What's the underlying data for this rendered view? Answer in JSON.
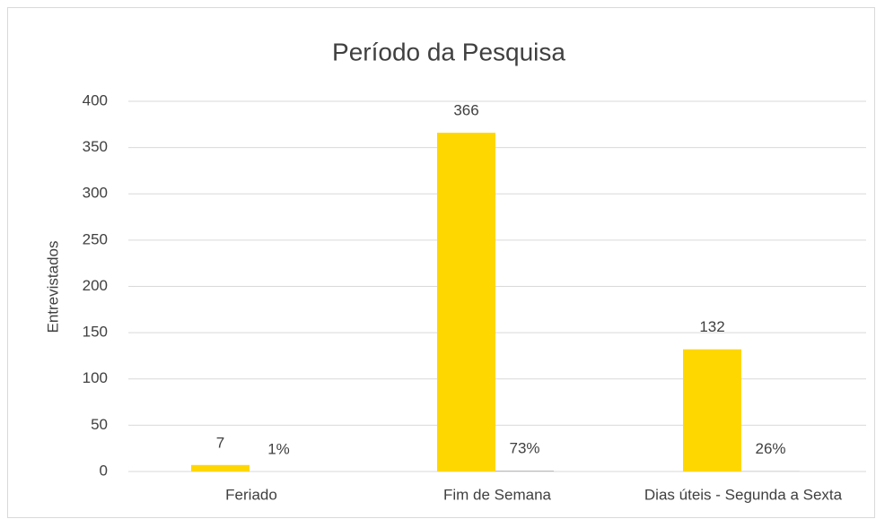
{
  "chart_data": {
    "type": "bar",
    "title": "Período da Pesquisa",
    "y_label": "Entrevistados",
    "categories": [
      "Feriado",
      "Fim de Semana",
      "Dias úteis - Segunda a Sexta"
    ],
    "series": [
      {
        "color": "#ffd700",
        "values": [
          7,
          366,
          132
        ]
      },
      {
        "color": "#a5a5a5",
        "values": [
          0.01,
          0.73,
          0.26
        ],
        "value_labels": [
          "1%",
          "73%",
          "26%"
        ]
      }
    ],
    "ylim": [
      0,
      400
    ],
    "yticks": [
      0,
      50,
      100,
      150,
      200,
      250,
      300,
      350,
      400
    ],
    "grid": true
  }
}
